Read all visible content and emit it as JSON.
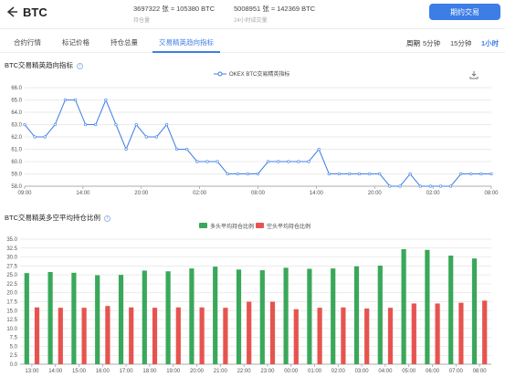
{
  "header": {
    "coin": "BTC",
    "open_interest_value": "3697322 张 ≈ 105380 BTC",
    "open_interest_label": "持仓量",
    "volume_value": "5008951 张 ≈ 142369 BTC",
    "volume_label": "24小时成交量",
    "trade_button": "期约交易"
  },
  "tabs": [
    {
      "label": "合约行情"
    },
    {
      "label": "标记价格"
    },
    {
      "label": "持仓总量"
    },
    {
      "label": "交易精英趋向指标"
    }
  ],
  "periods": {
    "label": "周期",
    "options": [
      "5分钟",
      "15分钟",
      "1小时"
    ],
    "selected": "1小时"
  },
  "colors": {
    "accent": "#3d7ee6",
    "long": "#3aa85a",
    "short": "#e6544f"
  },
  "icons": {
    "back": "arrow-left-icon",
    "info": "info-icon",
    "download": "download-icon"
  },
  "chart_data": [
    {
      "type": "line",
      "title": "BTC交易精英趋向指标",
      "legend": "OKEX BTC交易精英指标",
      "legend_position": "top-center",
      "grid": true,
      "ylim": [
        58,
        66
      ],
      "yticks": [
        "58.0",
        "59.0",
        "60.0",
        "61.0",
        "62.0",
        "63.0",
        "64.0",
        "65.0",
        "66.0"
      ],
      "xticks": [
        "09:00",
        "14:00",
        "20:00",
        "02:00",
        "08:00",
        "14:00",
        "20:00",
        "02:00",
        "08:00"
      ],
      "series": [
        {
          "name": "OKEX BTC交易精英指标",
          "values": [
            63,
            62,
            62,
            63,
            65,
            65,
            63,
            63,
            65,
            63,
            61,
            63,
            62,
            62,
            63,
            61,
            61,
            60,
            60,
            60,
            59,
            59,
            59,
            59,
            60,
            60,
            60,
            60,
            60,
            61,
            59,
            59,
            59,
            59,
            59,
            59,
            58,
            58,
            59,
            58,
            58,
            58,
            58,
            59,
            59,
            59,
            59
          ]
        }
      ]
    },
    {
      "type": "bar",
      "title": "BTC交易精英多空平均持仓比例",
      "legend_position": "top-center",
      "grid": true,
      "ylim": [
        0,
        35
      ],
      "yticks": [
        "0.0",
        "2.5",
        "5.0",
        "7.5",
        "10.0",
        "12.5",
        "15.0",
        "17.5",
        "20.0",
        "22.5",
        "25.0",
        "27.5",
        "30.0",
        "32.5",
        "35.0"
      ],
      "categories": [
        "13:00",
        "14:00",
        "15:00",
        "16:00",
        "17:00",
        "18:00",
        "19:00",
        "20:00",
        "21:00",
        "22:00",
        "23:00",
        "00:00",
        "01:00",
        "02:00",
        "03:00",
        "04:00",
        "05:00",
        "06:00",
        "07:00",
        "08:00"
      ],
      "series": [
        {
          "name": "多头平均持仓比例",
          "values": [
            25.5,
            25.8,
            25.6,
            24.9,
            25.0,
            26.2,
            26.0,
            26.8,
            27.3,
            26.5,
            26.3,
            27.0,
            26.7,
            26.8,
            27.4,
            27.6,
            32.2,
            32.0,
            30.4,
            29.6
          ]
        },
        {
          "name": "空头平均持仓比例",
          "values": [
            15.9,
            15.8,
            15.8,
            16.3,
            15.9,
            15.8,
            15.9,
            15.9,
            15.8,
            17.5,
            17.5,
            15.4,
            15.8,
            15.9,
            15.6,
            15.8,
            17.0,
            17.0,
            17.2,
            17.8
          ]
        }
      ]
    }
  ]
}
